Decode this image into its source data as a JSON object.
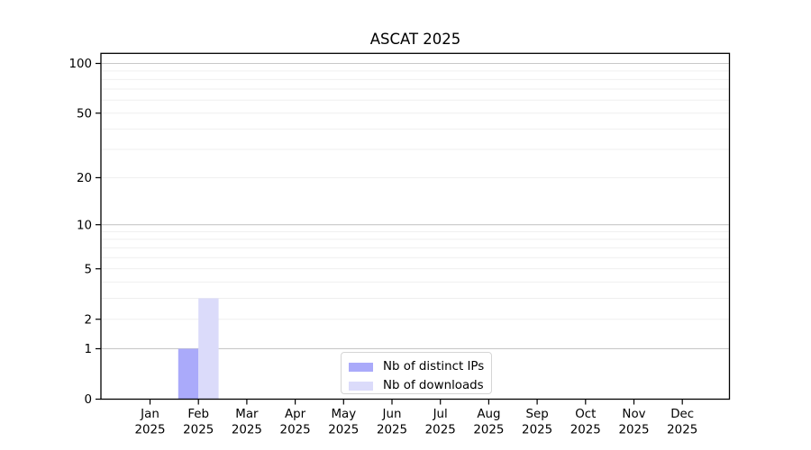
{
  "chart_data": {
    "type": "bar",
    "title": "ASCAT 2025",
    "x_categories": [
      "Jan",
      "Feb",
      "Mar",
      "Apr",
      "May",
      "Jun",
      "Jul",
      "Aug",
      "Sep",
      "Oct",
      "Nov",
      "Dec"
    ],
    "x_year_label": "2025",
    "series": [
      {
        "name": "Nb of distinct IPs",
        "color": "#aaaafa",
        "values": [
          0,
          1,
          0,
          0,
          0,
          0,
          0,
          0,
          0,
          0,
          0,
          0
        ]
      },
      {
        "name": "Nb of downloads",
        "color": "#dbdbfa",
        "values": [
          0,
          3,
          0,
          0,
          0,
          0,
          0,
          0,
          0,
          0,
          0,
          0
        ]
      }
    ],
    "y_axis": {
      "scale": "log1p",
      "ylim": [
        0,
        115
      ],
      "tick_values": [
        0,
        1,
        2,
        5,
        10,
        20,
        50,
        100
      ],
      "tick_labels": [
        "0",
        "1",
        "2",
        "5",
        "10",
        "20",
        "50",
        "100"
      ],
      "major_gridlines": [
        1,
        10,
        100
      ],
      "minor_gridlines": [
        2,
        3,
        4,
        5,
        6,
        7,
        8,
        9,
        20,
        30,
        40,
        50,
        60,
        70,
        80,
        90
      ]
    },
    "legend": {
      "position": "lower-center",
      "entries": [
        "Nb of distinct IPs",
        "Nb of downloads"
      ]
    },
    "colors": {
      "major_grid": "#c8c8c8",
      "minor_grid": "#efefef",
      "spine": "#000000",
      "text": "#000000",
      "background": "#ffffff"
    }
  }
}
